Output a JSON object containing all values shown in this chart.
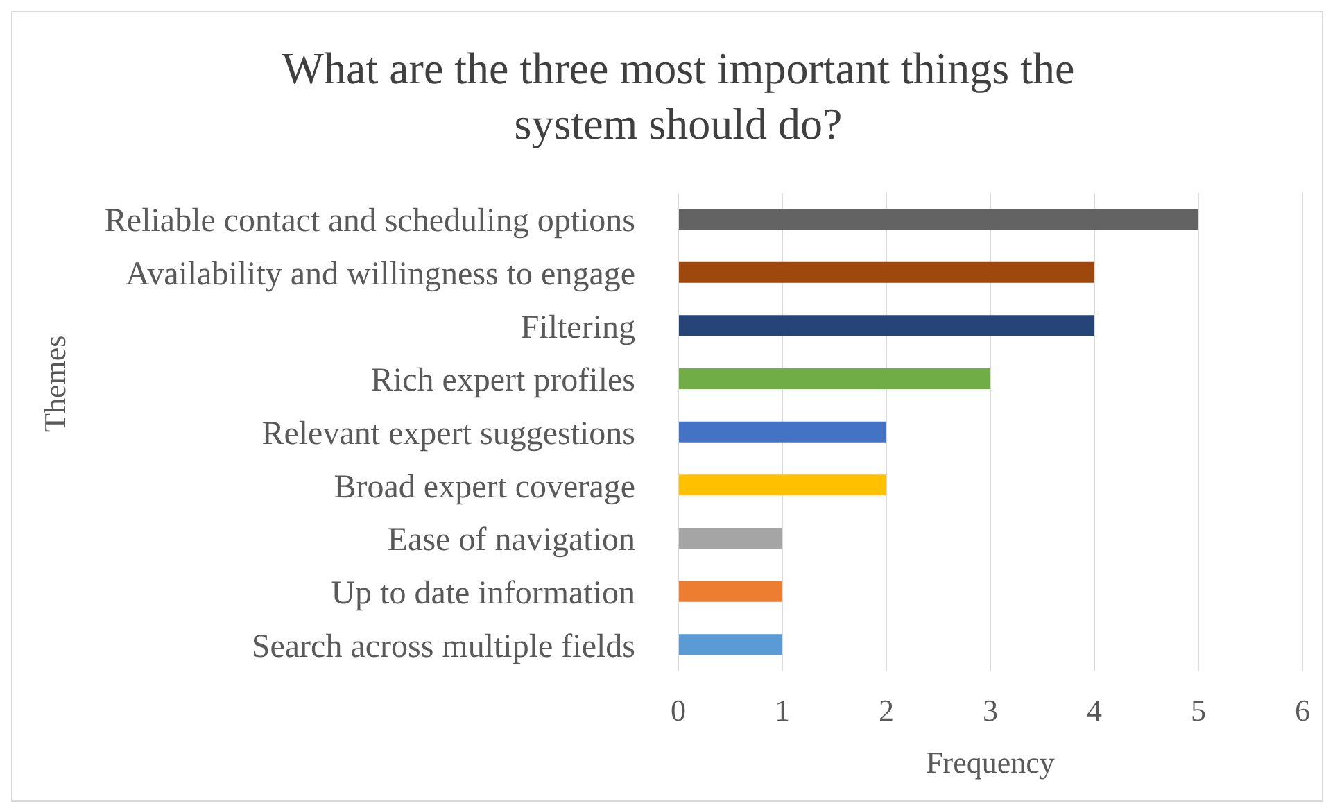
{
  "chart_data": {
    "type": "bar",
    "orientation": "horizontal",
    "title": "What are the three most important things the system should do?",
    "xlabel": "Frequency",
    "ylabel": "Themes",
    "categories": [
      "Reliable contact and scheduling options",
      "Availability and willingness to engage",
      "Filtering",
      "Rich expert profiles",
      "Relevant expert suggestions",
      "Broad expert coverage",
      "Ease of navigation",
      "Up to date information",
      "Search across multiple fields"
    ],
    "values": [
      5,
      4,
      4,
      3,
      2,
      2,
      1,
      1,
      1
    ],
    "colors": [
      "#636363",
      "#9e480e",
      "#264478",
      "#70ad47",
      "#4472c4",
      "#ffc000",
      "#a5a5a5",
      "#ed7d31",
      "#5b9bd5"
    ],
    "xlim": [
      0,
      6
    ],
    "xticks": [
      0,
      1,
      2,
      3,
      4,
      5,
      6
    ],
    "grid": "x",
    "legend": false
  }
}
